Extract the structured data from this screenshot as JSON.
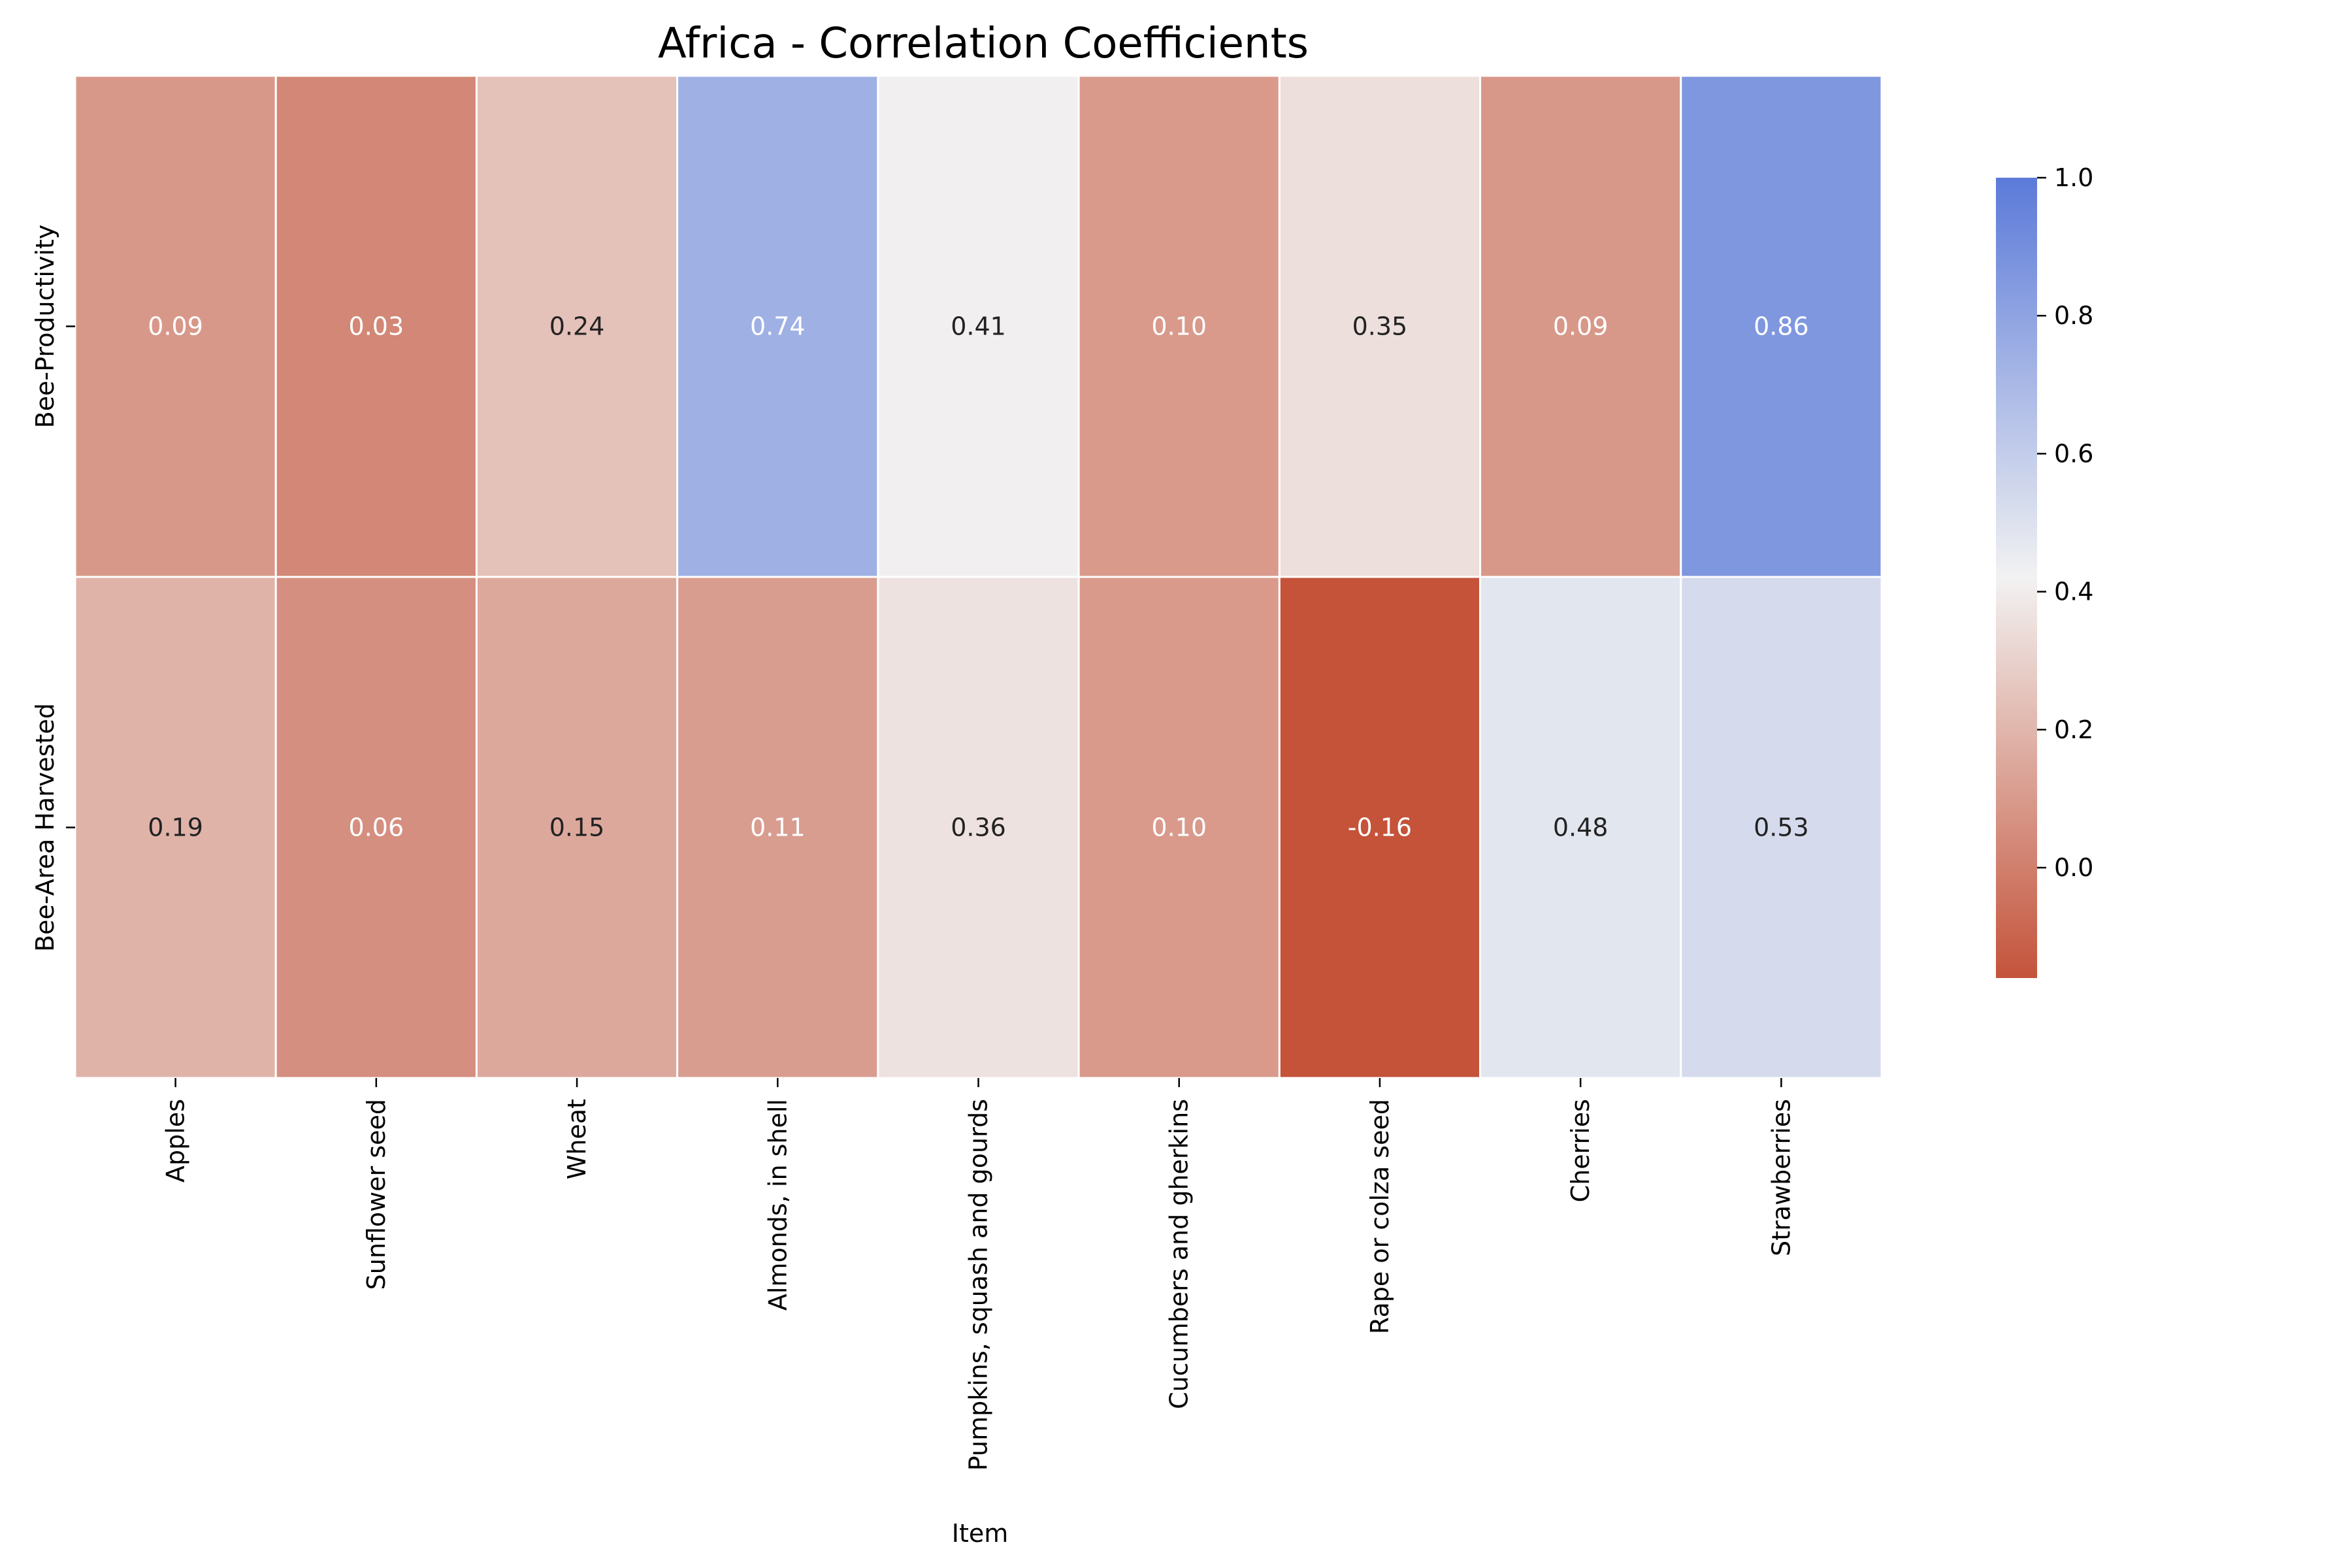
{
  "chart_data": {
    "type": "heatmap",
    "title": "Africa - Correlation Coefficients",
    "xlabel": "Item",
    "ylabel": "",
    "x_categories": [
      "Apples",
      "Sunflower seed",
      "Wheat",
      "Almonds, in shell",
      "Pumpkins, squash and gourds",
      "Cucumbers and gherkins",
      "Rape or colza seed",
      "Cherries",
      "Strawberries"
    ],
    "y_categories": [
      "Bee-Productivity",
      "Bee-Area Harvested"
    ],
    "values": [
      [
        0.09,
        0.03,
        0.24,
        0.74,
        0.41,
        0.1,
        0.35,
        0.09,
        0.86
      ],
      [
        0.19,
        0.06,
        0.15,
        0.11,
        0.36,
        0.1,
        -0.16,
        0.48,
        0.53
      ]
    ],
    "value_labels": [
      [
        "0.09",
        "0.03",
        "0.24",
        "0.74",
        "0.41",
        "0.10",
        "0.35",
        "0.09",
        "0.86"
      ],
      [
        "0.19",
        "0.06",
        "0.15",
        "0.11",
        "0.36",
        "0.10",
        "-0.16",
        "0.48",
        "0.53"
      ]
    ],
    "colorbar": {
      "range": [
        -0.16,
        1.0
      ],
      "ticks": [
        0.0,
        0.2,
        0.4,
        0.6,
        0.8,
        1.0
      ],
      "tick_labels": [
        "0.0",
        "0.2",
        "0.4",
        "0.6",
        "0.8",
        "1.0"
      ],
      "low_color": "#c4533a",
      "mid_color": "#f2f2f2",
      "high_color": "#5b7ad9"
    },
    "legend": "right"
  }
}
